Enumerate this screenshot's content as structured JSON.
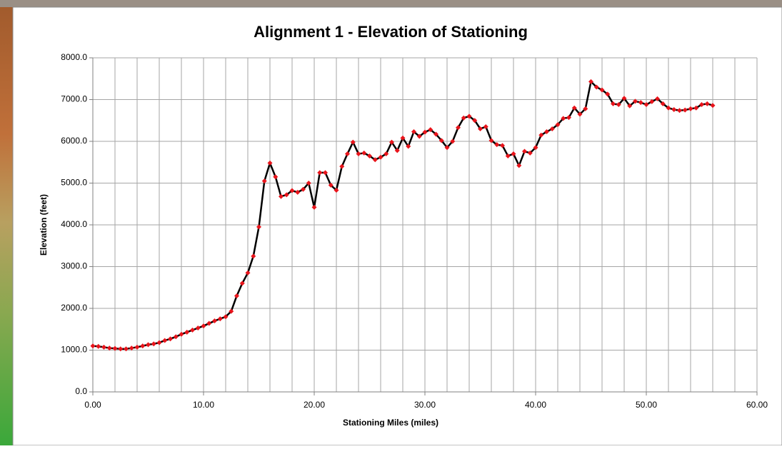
{
  "chart_data": {
    "type": "line",
    "title": "Alignment 1 - Elevation of Stationing",
    "x_label": "Stationing Miles (miles)",
    "y_label": "Elevation (feet)",
    "xlim": [
      0,
      60
    ],
    "ylim": [
      0,
      8000
    ],
    "xticks": [
      {
        "value": 0,
        "label": "0.00"
      },
      {
        "value": 10,
        "label": "10.00"
      },
      {
        "value": 20,
        "label": "20.00"
      },
      {
        "value": 30,
        "label": "30.00"
      },
      {
        "value": 40,
        "label": "40.00"
      },
      {
        "value": 50,
        "label": "50.00"
      },
      {
        "value": 60,
        "label": "60.00"
      }
    ],
    "yticks": [
      {
        "value": 0,
        "label": "0.0"
      },
      {
        "value": 1000,
        "label": "1000.0"
      },
      {
        "value": 2000,
        "label": "2000.0"
      },
      {
        "value": 3000,
        "label": "3000.0"
      },
      {
        "value": 4000,
        "label": "4000.0"
      },
      {
        "value": 5000,
        "label": "5000.0"
      },
      {
        "value": 6000,
        "label": "6000.0"
      },
      {
        "value": 7000,
        "label": "7000.0"
      },
      {
        "value": 8000,
        "label": "8000.0"
      }
    ],
    "x_gridlines": [
      2,
      4,
      6,
      8,
      12,
      14,
      16,
      18,
      22,
      24,
      26,
      28,
      32,
      34,
      36,
      38,
      42,
      44,
      46,
      48,
      52,
      54,
      56,
      58
    ],
    "grid": true,
    "color": "#000000",
    "marker_color": "#e8141b",
    "x": [
      0,
      0.5,
      1,
      1.5,
      2,
      2.5,
      3,
      3.5,
      4,
      4.5,
      5,
      5.5,
      6,
      6.5,
      7,
      7.5,
      8,
      8.5,
      9,
      9.5,
      10,
      10.5,
      11,
      11.5,
      12,
      12.5,
      13,
      13.5,
      14,
      14.5,
      15,
      15.5,
      16,
      16.5,
      17,
      17.5,
      18,
      18.5,
      19,
      19.5,
      20,
      20.5,
      21,
      21.5,
      22,
      22.5,
      23,
      23.5,
      24,
      24.5,
      25,
      25.5,
      26,
      26.5,
      27,
      27.5,
      28,
      28.5,
      29,
      29.5,
      30,
      30.5,
      31,
      31.5,
      32,
      32.5,
      33,
      33.5,
      34,
      34.5,
      35,
      35.5,
      36,
      36.5,
      37,
      37.5,
      38,
      38.5,
      39,
      39.5,
      40,
      40.5,
      41,
      41.5,
      42,
      42.5,
      43,
      43.5,
      44,
      44.5,
      45,
      45.5,
      46,
      46.5,
      47,
      47.5,
      48,
      48.5,
      49,
      49.5,
      50,
      50.5,
      51,
      51.5,
      52,
      52.5,
      53,
      53.5,
      54,
      54.5,
      55,
      55.5,
      56
    ],
    "values": [
      1100,
      1090,
      1070,
      1050,
      1040,
      1030,
      1030,
      1050,
      1070,
      1100,
      1130,
      1150,
      1180,
      1230,
      1270,
      1320,
      1380,
      1430,
      1480,
      1530,
      1580,
      1640,
      1700,
      1750,
      1800,
      1930,
      2300,
      2600,
      2850,
      3250,
      3950,
      5050,
      5480,
      5150,
      4680,
      4720,
      4820,
      4780,
      4850,
      5000,
      4420,
      5250,
      5250,
      4950,
      4830,
      5400,
      5700,
      5980,
      5700,
      5720,
      5650,
      5560,
      5620,
      5700,
      5980,
      5780,
      6080,
      5880,
      6230,
      6120,
      6220,
      6280,
      6170,
      6020,
      5850,
      6000,
      6330,
      6560,
      6600,
      6500,
      6300,
      6350,
      6020,
      5920,
      5900,
      5650,
      5700,
      5420,
      5760,
      5720,
      5850,
      6150,
      6230,
      6300,
      6400,
      6550,
      6570,
      6800,
      6650,
      6780,
      7430,
      7300,
      7230,
      7130,
      6900,
      6880,
      7030,
      6850,
      6960,
      6930,
      6880,
      6950,
      7020,
      6900,
      6800,
      6760,
      6740,
      6750,
      6780,
      6800,
      6880,
      6900,
      6860
    ]
  }
}
